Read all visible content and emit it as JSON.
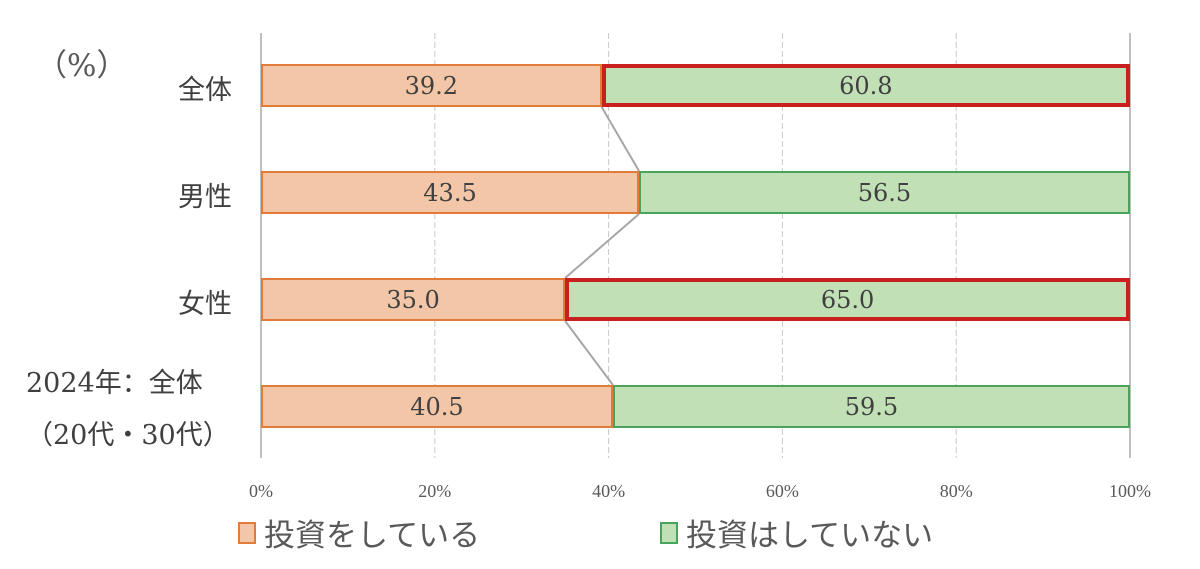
{
  "chart_data": {
    "type": "bar",
    "orientation": "horizontal",
    "stacked": "percent",
    "unit_label": "（%）",
    "categories": [
      "全体",
      "男性",
      "女性",
      "2024年：全体（20代・30代）"
    ],
    "category_lines": [
      [
        "全体"
      ],
      [
        "男性"
      ],
      [
        "女性"
      ],
      [
        "2024年：全体",
        "（20代・30代）"
      ]
    ],
    "series": [
      {
        "name": "投資をしている",
        "values": [
          39.2,
          43.5,
          35.0,
          40.5
        ],
        "labels": [
          "39.2",
          "43.5",
          "35.0",
          "40.5"
        ],
        "color": "#f4c6a8",
        "border": "#e07b39"
      },
      {
        "name": "投資はしていない",
        "values": [
          60.8,
          56.5,
          65.0,
          59.5
        ],
        "labels": [
          "60.8",
          "56.5",
          "65.0",
          "59.5"
        ],
        "color": "#c1e0b6",
        "border": "#4aa35a"
      }
    ],
    "highlighted_segments": [
      {
        "category": "全体",
        "series": "投資はしていない"
      },
      {
        "category": "女性",
        "series": "投資はしていない"
      }
    ],
    "highlight_color": "#c8201f",
    "series_lines": true,
    "xlim": [
      0,
      100
    ],
    "xticks": [
      "0%",
      "20%",
      "40%",
      "60%",
      "80%",
      "100%"
    ],
    "grid": true,
    "legend_position": "bottom",
    "title": "",
    "xlabel": "",
    "ylabel": ""
  }
}
